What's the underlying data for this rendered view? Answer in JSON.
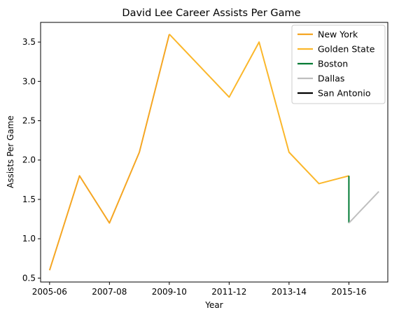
{
  "chart_data": {
    "type": "line",
    "title": "David Lee  Career Assists Per Game",
    "xlabel": "Year",
    "ylabel": "Assists Per Game",
    "x_ticks": [
      "2005-06",
      "2007-08",
      "2009-10",
      "2011-12",
      "2013-14",
      "2015-16"
    ],
    "x_tick_index": [
      0,
      2,
      4,
      6,
      8,
      10
    ],
    "xlim": [
      -0.3,
      11.3
    ],
    "ylim": [
      0.45,
      3.75
    ],
    "y_ticks": [
      0.5,
      1.0,
      1.5,
      2.0,
      2.5,
      3.0,
      3.5
    ],
    "y_tick_labels": [
      "0.5",
      "1.0",
      "1.5",
      "2.0",
      "2.5",
      "3.0",
      "3.5"
    ],
    "legend_position": "top-right",
    "grid": false,
    "series": [
      {
        "name": "New York",
        "color": "#f5a623",
        "x": [
          0,
          1,
          2,
          3,
          4
        ],
        "y": [
          0.6,
          1.8,
          1.2,
          2.1,
          3.6
        ]
      },
      {
        "name": "Golden State",
        "color": "#fbb72b",
        "x": [
          4,
          5,
          6,
          7,
          8,
          9,
          10
        ],
        "y": [
          3.6,
          3.2,
          2.8,
          3.5,
          2.1,
          1.7,
          1.8
        ]
      },
      {
        "name": "Boston",
        "color": "#007a33",
        "x": [
          10,
          10
        ],
        "y": [
          1.8,
          1.2
        ]
      },
      {
        "name": "Dallas",
        "color": "#bfbfbf",
        "x": [
          10,
          11
        ],
        "y": [
          1.2,
          1.6
        ]
      },
      {
        "name": "San Antonio",
        "color": "#000000",
        "x": [],
        "y": []
      }
    ]
  }
}
